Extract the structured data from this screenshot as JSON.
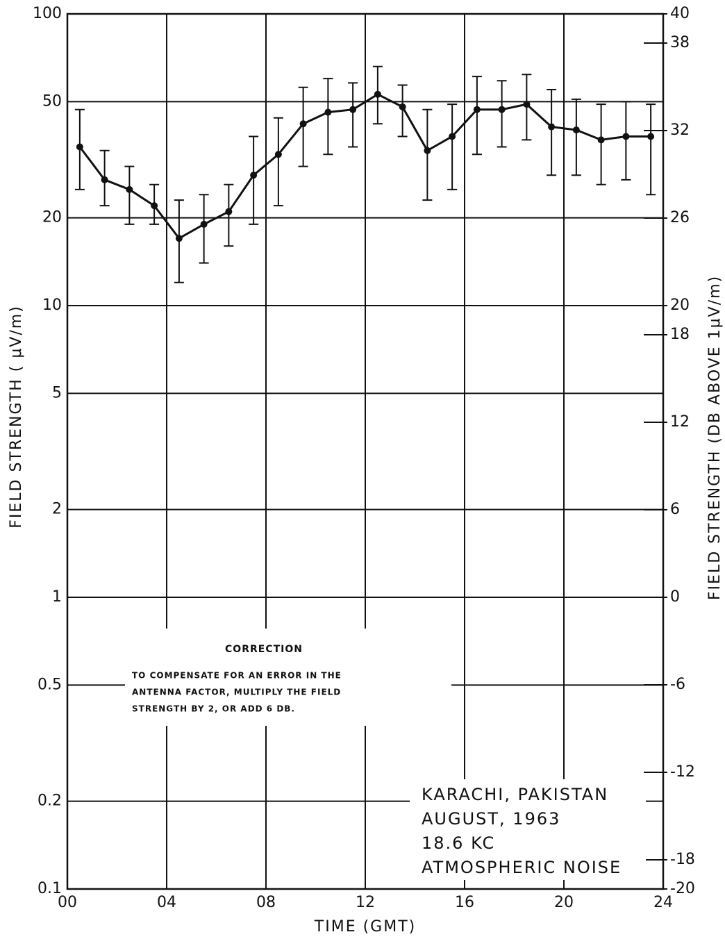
{
  "chart_data": {
    "type": "line",
    "x": [
      0.5,
      1.5,
      2.5,
      3.5,
      4.5,
      5.5,
      6.5,
      7.5,
      8.5,
      9.5,
      10.5,
      11.5,
      12.5,
      13.5,
      14.5,
      15.5,
      16.5,
      17.5,
      18.5,
      19.5,
      20.5,
      21.5,
      22.5,
      23.5
    ],
    "values": [
      35,
      27,
      25,
      22,
      17,
      19,
      21,
      28,
      33,
      42,
      46,
      47,
      53,
      48,
      34,
      38,
      47,
      47,
      49,
      41,
      40,
      37,
      38,
      38
    ],
    "upper": [
      47,
      34,
      30,
      26,
      23,
      24,
      26,
      38,
      44,
      56,
      60,
      58,
      66,
      57,
      47,
      49,
      61,
      59,
      62,
      55,
      51,
      49,
      50,
      49
    ],
    "lower": [
      25,
      22,
      19,
      19,
      12,
      14,
      16,
      19,
      22,
      30,
      33,
      35,
      42,
      38,
      23,
      25,
      33,
      35,
      37,
      28,
      28,
      26,
      27,
      24
    ],
    "color": "#111111",
    "xlim": [
      0,
      24
    ],
    "xticks": [
      {
        "value": 0,
        "label": "00"
      },
      {
        "value": 4,
        "label": "04"
      },
      {
        "value": 8,
        "label": "08"
      },
      12,
      16,
      20,
      24
    ],
    "ylim": [
      0.1,
      100
    ],
    "log_y": true,
    "yticks": [
      100,
      50,
      20,
      10,
      5,
      2,
      1,
      0.5,
      0.2,
      0.1
    ],
    "y2lim": [
      -20,
      40
    ],
    "y2ticks": [
      40,
      38,
      32,
      26,
      20,
      18,
      12,
      6,
      0,
      -6,
      -12,
      -18,
      -20
    ],
    "grid": true,
    "xlabel": "TIME (GMT)",
    "ylabel": "FIELD STRENGTH ( μV/m)",
    "y2label": "FIELD STRENGTH (DB ABOVE 1μV/m)",
    "correction_title": "CORRECTION",
    "correction_lines": [
      "TO COMPENSATE FOR AN ERROR IN THE",
      "ANTENNA FACTOR, MULTIPLY THE FIELD",
      "STRENGTH BY 2, OR ADD 6 DB."
    ],
    "station_lines": [
      "KARACHI, PAKISTAN",
      "AUGUST, 1963",
      "18.6 KC",
      "ATMOSPHERIC NOISE"
    ]
  }
}
